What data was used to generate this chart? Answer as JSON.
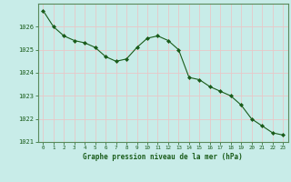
{
  "x": [
    0,
    1,
    2,
    3,
    4,
    5,
    6,
    7,
    8,
    9,
    10,
    11,
    12,
    13,
    14,
    15,
    16,
    17,
    18,
    19,
    20,
    21,
    22,
    23
  ],
  "y": [
    1026.7,
    1026.0,
    1025.6,
    1025.4,
    1025.3,
    1025.1,
    1024.7,
    1024.5,
    1024.6,
    1025.1,
    1025.5,
    1025.6,
    1025.4,
    1025.0,
    1023.8,
    1023.7,
    1023.4,
    1023.2,
    1023.0,
    1022.6,
    1022.0,
    1021.7,
    1021.4,
    1021.3
  ],
  "line_color": "#1a5c1a",
  "marker_color": "#1a5c1a",
  "bg_color": "#c8ece8",
  "grid_color": "#e8c8c8",
  "xlabel": "Graphe pression niveau de la mer (hPa)",
  "xlabel_color": "#1a5c1a",
  "tick_color": "#1a5c1a",
  "spine_color": "#5a8a5a",
  "ylim": [
    1021.0,
    1027.0
  ],
  "xlim": [
    -0.5,
    23.5
  ],
  "yticks": [
    1021,
    1022,
    1023,
    1024,
    1025,
    1026
  ],
  "xtick_labels": [
    "0",
    "1",
    "2",
    "3",
    "4",
    "5",
    "6",
    "7",
    "8",
    "9",
    "10",
    "11",
    "12",
    "13",
    "14",
    "15",
    "16",
    "17",
    "18",
    "19",
    "20",
    "21",
    "22",
    "23"
  ]
}
